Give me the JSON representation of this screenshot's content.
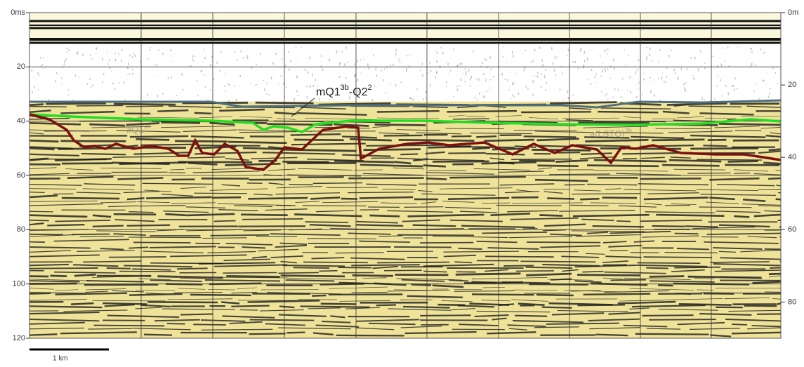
{
  "left_axis": {
    "range": [
      0,
      120
    ],
    "ticks": [
      {
        "value": 0,
        "label": "0ms"
      },
      20,
      40,
      60,
      80,
      100,
      120
    ]
  },
  "right_axis": {
    "range": [
      0,
      90
    ],
    "ticks": [
      {
        "value": 0,
        "label": "0m"
      },
      20,
      40,
      60,
      80
    ]
  },
  "labels": {
    "main": {
      "parts": [
        "mQ1",
        "3b",
        "-Q2",
        "2"
      ]
    },
    "left_unit": {
      "parts": [
        "aQ1",
        "3b"
      ]
    },
    "right_unit": {
      "parts": [
        "a(LSTQ)",
        "3b"
      ]
    }
  },
  "scale_bar": "1 km"
}
